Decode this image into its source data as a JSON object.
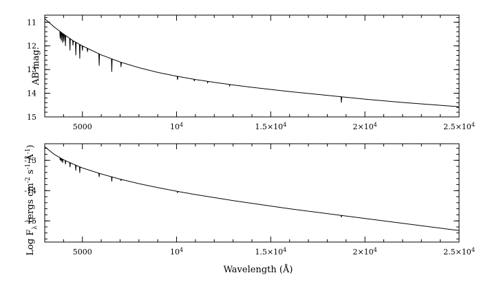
{
  "chart_data": [
    {
      "type": "line",
      "title": "",
      "xlabel": "",
      "ylabel": "AB mag.",
      "xlim": [
        3000,
        25000
      ],
      "ylim": [
        15,
        10.7
      ],
      "y_inverted": true,
      "x_ticks": [
        {
          "value": 5000,
          "label": "5000",
          "sup": ""
        },
        {
          "value": 10000,
          "label": "10",
          "sup": "4"
        },
        {
          "value": 15000,
          "label": "1.5×10",
          "sup": "4"
        },
        {
          "value": 20000,
          "label": "2×10",
          "sup": "4"
        },
        {
          "value": 25000,
          "label": "2.5×10",
          "sup": "4"
        }
      ],
      "y_ticks": [
        {
          "value": 11,
          "label": "11"
        },
        {
          "value": 12,
          "label": "12"
        },
        {
          "value": 13,
          "label": "13"
        },
        {
          "value": 14,
          "label": "14"
        },
        {
          "value": 15,
          "label": "15"
        }
      ],
      "series": [
        {
          "x": [
            3000,
            3500,
            4000,
            4500,
            5000,
            6000,
            7000,
            8000,
            9000,
            10000,
            11000,
            12000,
            13000,
            14000,
            15000,
            16000,
            17000,
            18000,
            19000,
            20000,
            21000,
            22000,
            23000,
            24000,
            25000
          ],
          "values": [
            10.85,
            11.2,
            11.5,
            11.78,
            12.0,
            12.38,
            12.68,
            12.92,
            13.12,
            13.28,
            13.42,
            13.54,
            13.65,
            13.75,
            13.84,
            13.93,
            14.01,
            14.09,
            14.17,
            14.25,
            14.32,
            14.39,
            14.45,
            14.51,
            14.57
          ]
        }
      ],
      "absorption_lines": [
        {
          "x": 3820,
          "depth": 0.3
        },
        {
          "x": 3880,
          "depth": 0.35
        },
        {
          "x": 3950,
          "depth": 0.4
        },
        {
          "x": 4020,
          "depth": 0.3
        },
        {
          "x": 4100,
          "depth": 0.45
        },
        {
          "x": 4340,
          "depth": 0.5
        },
        {
          "x": 4500,
          "depth": 0.2
        },
        {
          "x": 4650,
          "depth": 0.55
        },
        {
          "x": 4860,
          "depth": 0.6
        },
        {
          "x": 5000,
          "depth": 0.2
        },
        {
          "x": 5270,
          "depth": 0.15
        },
        {
          "x": 5890,
          "depth": 0.5
        },
        {
          "x": 6560,
          "depth": 0.55
        },
        {
          "x": 7050,
          "depth": 0.2
        },
        {
          "x": 10050,
          "depth": 0.15
        },
        {
          "x": 10940,
          "depth": 0.08
        },
        {
          "x": 11650,
          "depth": 0.06
        },
        {
          "x": 12820,
          "depth": 0.06
        },
        {
          "x": 18750,
          "depth": 0.25
        }
      ]
    },
    {
      "type": "line",
      "title": "",
      "xlabel": "Wavelength (Å)",
      "ylabel": "Log F",
      "ylabel_sub": "λ",
      "ylabel_rest": " (ergs cm",
      "ylabel_sup1": "-2",
      "ylabel_s": " s",
      "ylabel_sup2": "-1",
      "ylabel_a": " Å",
      "ylabel_sup3": "-1",
      "ylabel_end": ")",
      "xlim": [
        3000,
        25000
      ],
      "ylim": [
        -15.7,
        -12.45
      ],
      "y_inverted": false,
      "x_ticks": [
        {
          "value": 5000,
          "label": "5000",
          "sup": ""
        },
        {
          "value": 10000,
          "label": "10",
          "sup": "4"
        },
        {
          "value": 15000,
          "label": "1.5×10",
          "sup": "4"
        },
        {
          "value": 20000,
          "label": "2×10",
          "sup": "4"
        },
        {
          "value": 25000,
          "label": "2.5×10",
          "sup": "4"
        }
      ],
      "y_ticks": [
        {
          "value": -13,
          "label": "-13"
        },
        {
          "value": -14,
          "label": "-14"
        },
        {
          "value": -15,
          "label": "-15"
        }
      ],
      "series": [
        {
          "x": [
            3000,
            3500,
            4000,
            4500,
            5000,
            6000,
            7000,
            8000,
            9000,
            10000,
            11000,
            12000,
            13000,
            14000,
            15000,
            16000,
            17000,
            18000,
            19000,
            20000,
            21000,
            22000,
            23000,
            24000,
            25000
          ],
          "values": [
            -12.55,
            -12.8,
            -12.98,
            -13.12,
            -13.25,
            -13.45,
            -13.62,
            -13.77,
            -13.9,
            -14.02,
            -14.13,
            -14.23,
            -14.33,
            -14.42,
            -14.51,
            -14.6,
            -14.68,
            -14.76,
            -14.84,
            -14.92,
            -15.0,
            -15.08,
            -15.16,
            -15.24,
            -15.32
          ]
        }
      ],
      "absorption_lines": [
        {
          "x": 3820,
          "depth": 0.08
        },
        {
          "x": 3880,
          "depth": 0.1
        },
        {
          "x": 3950,
          "depth": 0.12
        },
        {
          "x": 4100,
          "depth": 0.12
        },
        {
          "x": 4340,
          "depth": 0.15
        },
        {
          "x": 4650,
          "depth": 0.18
        },
        {
          "x": 4860,
          "depth": 0.2
        },
        {
          "x": 5890,
          "depth": 0.12
        },
        {
          "x": 6560,
          "depth": 0.15
        },
        {
          "x": 7050,
          "depth": 0.05
        },
        {
          "x": 10050,
          "depth": 0.05
        },
        {
          "x": 18750,
          "depth": 0.06
        }
      ]
    }
  ]
}
